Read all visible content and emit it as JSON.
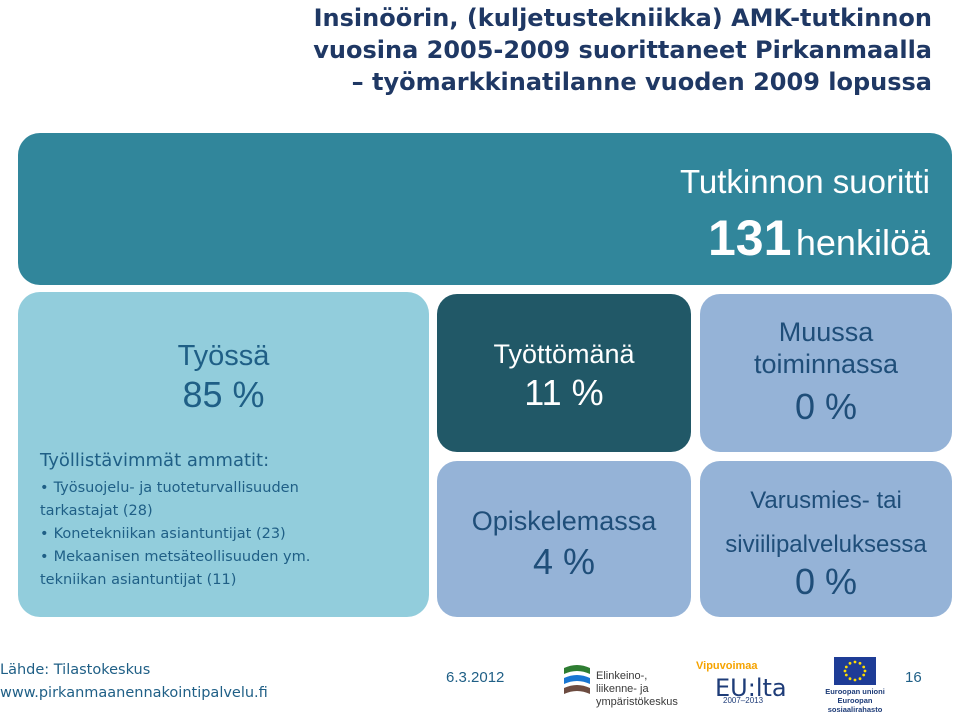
{
  "title": {
    "line1": "Insinöörin, (kuljetustekniikka) AMK-tutkinnon",
    "line2": "vuosina 2005-2009 suorittaneet Pirkanmaalla",
    "line3": "– työmarkkinatilanne vuoden 2009 lopussa"
  },
  "total": {
    "label": "Tutkinnon suoritti",
    "count": "131",
    "unit": "henkilöä",
    "color": "#31869b"
  },
  "employed": {
    "label": "Työssä",
    "percent": "85 %",
    "occupations_heading": "Työllistävimmät ammatit:",
    "occupations": [
      {
        "line1": "Työsuojelu- ja tuoteturvallisuuden",
        "line2": "tarkastajat (28)"
      },
      {
        "line1": "Konetekniikan asiantuntijat  (23)",
        "line2": ""
      },
      {
        "line1": "Mekaanisen metsäteollisuuden ym.",
        "line2": "tekniikan asiantuntijat  (11)"
      }
    ],
    "color": "#92cddc"
  },
  "unemployed": {
    "label": "Työttömänä",
    "percent": "11 %",
    "color": "#215867"
  },
  "studying": {
    "label": "Opiskelemassa",
    "percent": "4 %",
    "color": "#95b3d7"
  },
  "other": {
    "label_line1": "Muussa",
    "label_line2": "toiminnassa",
    "percent": "0 %",
    "color": "#95b3d7"
  },
  "service": {
    "label_line1": "Varusmies- tai",
    "label_line2": "siviilipalveluksessa",
    "percent": "0 %",
    "color": "#95b3d7"
  },
  "footer": {
    "source": "Lähde: Tilastokeskus",
    "url": "www.pirkanmaanennakointipalvelu.fi",
    "date": "6.3.2012",
    "page": "16"
  },
  "logos": {
    "ely_line1": "Elinkeino-, liikenne- ja",
    "ely_line2": "ympäristökeskus",
    "vipuvoimaa": "Vipuvoimaa",
    "eu_lta": "EU:lta",
    "eu_years": "2007–2013",
    "eu_union": "Euroopan unioni",
    "eu_fund": "Euroopan sosiaalirahasto"
  }
}
